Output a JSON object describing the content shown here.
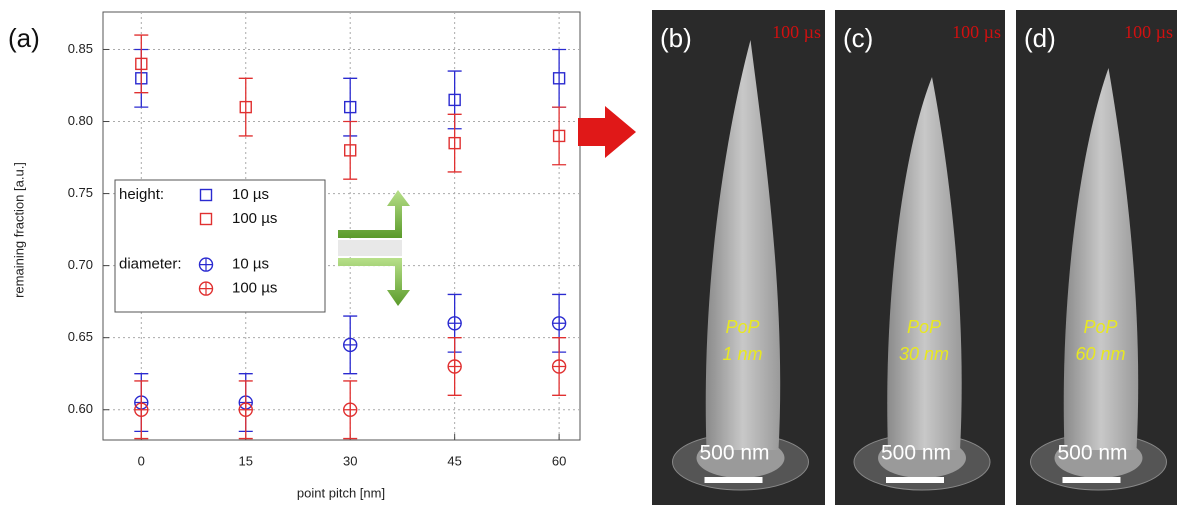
{
  "chart_data": {
    "type": "errorbar",
    "label": "(a)",
    "xlabel": "point pitch [nm]",
    "ylabel": "remaining fraction [a.u.]",
    "x": [
      0,
      15,
      30,
      45,
      60
    ],
    "xlim": [
      -5.5,
      63
    ],
    "xticks": [
      0,
      15,
      30,
      45,
      60
    ],
    "ylim": [
      0.579,
      0.876
    ],
    "yticks": [
      {
        "value": 0.6,
        "label": "0.60"
      },
      0.65,
      {
        "value": 0.7,
        "label": "0.70"
      },
      0.75,
      {
        "value": 0.8,
        "label": "0.80"
      },
      0.85
    ],
    "grid": true,
    "legend_titles": {
      "square": "height:",
      "circle": "diameter:"
    },
    "series": [
      {
        "name": "10 µs",
        "marker": "square",
        "color": "#2a2ad0",
        "values": [
          0.83,
          null,
          0.81,
          0.815,
          0.83
        ],
        "errors": [
          0.02,
          null,
          0.02,
          0.02,
          0.02
        ]
      },
      {
        "name": "100 µs",
        "marker": "square",
        "color": "#e03030",
        "values": [
          0.84,
          0.81,
          0.78,
          0.785,
          0.79
        ],
        "errors": [
          0.02,
          0.02,
          0.02,
          0.02,
          0.02
        ]
      },
      {
        "name": "10 µs",
        "marker": "circle",
        "color": "#2a2ad0",
        "values": [
          0.605,
          0.605,
          0.645,
          0.66,
          0.66
        ],
        "errors": [
          0.02,
          0.02,
          0.02,
          0.02,
          0.02
        ]
      },
      {
        "name": "100 µs",
        "marker": "circle",
        "color": "#e03030",
        "values": [
          0.6,
          0.6,
          0.6,
          0.63,
          0.63
        ],
        "errors": [
          0.02,
          0.02,
          0.02,
          0.02,
          0.02
        ]
      }
    ]
  },
  "panels": [
    {
      "label": "(b)",
      "time": "100 µs",
      "text": [
        "PoP",
        "1 nm"
      ],
      "scale": "500 nm"
    },
    {
      "label": "(c)",
      "time": "100 µs",
      "text": [
        "PoP",
        "30 nm"
      ],
      "scale": "500 nm"
    },
    {
      "label": "(d)",
      "time": "100 µs",
      "text": [
        "PoP",
        "60 nm"
      ],
      "scale": "500 nm"
    }
  ]
}
